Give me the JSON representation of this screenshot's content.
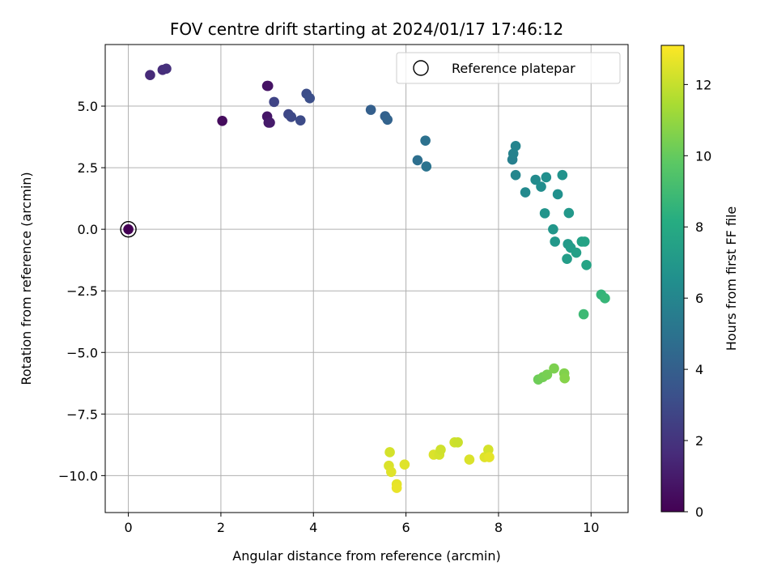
{
  "chart_data": {
    "type": "scatter",
    "title": "FOV centre drift starting at 2024/01/17 17:46:12",
    "xlabel": "Angular distance from reference (arcmin)",
    "ylabel": "Rotation from reference (arcmin)",
    "xlim": [
      -0.5,
      10.8
    ],
    "ylim": [
      -11.5,
      7.5
    ],
    "xticks": [
      0,
      2,
      4,
      6,
      8,
      10
    ],
    "xtick_labels": [
      "0",
      "2",
      "4",
      "6",
      "8",
      "10"
    ],
    "yticks": [
      5.0,
      2.5,
      0.0,
      -2.5,
      -5.0,
      -7.5,
      -10.0
    ],
    "ytick_labels": [
      "5.0",
      "2.5",
      "0.0",
      "−2.5",
      "−5.0",
      "−7.5",
      "−10.0"
    ],
    "grid": true,
    "legend": {
      "placement": "top-right",
      "entries": [
        "Reference platepar"
      ]
    },
    "colormap": "viridis",
    "colorbar": {
      "label": "Hours from first FF file",
      "range": [
        0,
        13.1
      ],
      "ticks": [
        0,
        2,
        4,
        6,
        8,
        10,
        12
      ],
      "tick_labels": [
        "0",
        "2",
        "4",
        "6",
        "8",
        "10",
        "12"
      ]
    },
    "reference": {
      "x": 0,
      "y": 0,
      "hours": 0.0
    },
    "points": [
      {
        "x": 0.0,
        "y": 0.0,
        "hours": 0.0
      },
      {
        "x": 2.03,
        "y": 4.4,
        "hours": 0.4
      },
      {
        "x": 3.0,
        "y": 5.82,
        "hours": 0.6
      },
      {
        "x": 3.02,
        "y": 5.82,
        "hours": 0.7
      },
      {
        "x": 3.0,
        "y": 4.58,
        "hours": 0.8
      },
      {
        "x": 3.03,
        "y": 4.33,
        "hours": 0.9
      },
      {
        "x": 3.06,
        "y": 4.33,
        "hours": 1.0
      },
      {
        "x": 0.47,
        "y": 6.26,
        "hours": 1.6
      },
      {
        "x": 0.74,
        "y": 6.47,
        "hours": 1.7
      },
      {
        "x": 0.82,
        "y": 6.52,
        "hours": 1.8
      },
      {
        "x": 3.15,
        "y": 5.17,
        "hours": 2.7
      },
      {
        "x": 3.46,
        "y": 4.67,
        "hours": 2.8
      },
      {
        "x": 3.52,
        "y": 4.56,
        "hours": 2.9
      },
      {
        "x": 3.72,
        "y": 4.42,
        "hours": 3.0
      },
      {
        "x": 3.85,
        "y": 5.5,
        "hours": 3.1
      },
      {
        "x": 3.92,
        "y": 5.32,
        "hours": 3.2
      },
      {
        "x": 5.24,
        "y": 4.85,
        "hours": 4.0
      },
      {
        "x": 5.55,
        "y": 4.59,
        "hours": 4.1
      },
      {
        "x": 5.6,
        "y": 4.45,
        "hours": 4.2
      },
      {
        "x": 6.25,
        "y": 2.8,
        "hours": 4.8
      },
      {
        "x": 6.42,
        "y": 3.6,
        "hours": 4.9
      },
      {
        "x": 6.44,
        "y": 2.55,
        "hours": 5.0
      },
      {
        "x": 8.3,
        "y": 2.83,
        "hours": 5.7
      },
      {
        "x": 8.32,
        "y": 3.07,
        "hours": 5.8
      },
      {
        "x": 8.37,
        "y": 3.38,
        "hours": 5.9
      },
      {
        "x": 8.37,
        "y": 2.2,
        "hours": 6.0
      },
      {
        "x": 8.58,
        "y": 1.5,
        "hours": 6.2
      },
      {
        "x": 8.8,
        "y": 2.01,
        "hours": 6.3
      },
      {
        "x": 8.92,
        "y": 1.73,
        "hours": 6.4
      },
      {
        "x": 9.03,
        "y": 2.11,
        "hours": 6.5
      },
      {
        "x": 9.28,
        "y": 1.42,
        "hours": 6.6
      },
      {
        "x": 9.38,
        "y": 2.2,
        "hours": 6.7
      },
      {
        "x": 9.0,
        "y": 0.65,
        "hours": 6.8
      },
      {
        "x": 9.18,
        "y": 0.0,
        "hours": 6.9
      },
      {
        "x": 9.22,
        "y": -0.5,
        "hours": 7.0
      },
      {
        "x": 9.52,
        "y": 0.66,
        "hours": 7.0
      },
      {
        "x": 9.5,
        "y": -0.6,
        "hours": 7.1
      },
      {
        "x": 9.56,
        "y": -0.75,
        "hours": 7.2
      },
      {
        "x": 9.48,
        "y": -1.2,
        "hours": 7.3
      },
      {
        "x": 9.68,
        "y": -0.95,
        "hours": 7.4
      },
      {
        "x": 9.8,
        "y": -0.5,
        "hours": 7.5
      },
      {
        "x": 9.86,
        "y": -0.5,
        "hours": 7.6
      },
      {
        "x": 9.9,
        "y": -1.45,
        "hours": 7.7
      },
      {
        "x": 10.22,
        "y": -2.65,
        "hours": 8.6
      },
      {
        "x": 10.3,
        "y": -2.8,
        "hours": 8.7
      },
      {
        "x": 9.84,
        "y": -3.45,
        "hours": 8.9
      },
      {
        "x": 8.86,
        "y": -6.1,
        "hours": 10.2
      },
      {
        "x": 8.96,
        "y": -6.0,
        "hours": 10.3
      },
      {
        "x": 9.05,
        "y": -5.9,
        "hours": 10.4
      },
      {
        "x": 9.2,
        "y": -5.65,
        "hours": 10.5
      },
      {
        "x": 9.42,
        "y": -5.85,
        "hours": 10.6
      },
      {
        "x": 9.43,
        "y": -6.05,
        "hours": 10.7
      },
      {
        "x": 5.65,
        "y": -9.05,
        "hours": 12.3
      },
      {
        "x": 5.63,
        "y": -9.6,
        "hours": 12.4
      },
      {
        "x": 5.68,
        "y": -9.85,
        "hours": 12.5
      },
      {
        "x": 5.8,
        "y": -10.35,
        "hours": 12.6
      },
      {
        "x": 5.8,
        "y": -10.5,
        "hours": 12.7
      },
      {
        "x": 5.97,
        "y": -9.55,
        "hours": 12.5
      },
      {
        "x": 6.6,
        "y": -9.15,
        "hours": 12.4
      },
      {
        "x": 6.72,
        "y": -9.15,
        "hours": 12.3
      },
      {
        "x": 6.75,
        "y": -8.95,
        "hours": 12.2
      },
      {
        "x": 7.05,
        "y": -8.65,
        "hours": 12.2
      },
      {
        "x": 7.12,
        "y": -8.65,
        "hours": 12.1
      },
      {
        "x": 7.37,
        "y": -9.35,
        "hours": 12.4
      },
      {
        "x": 7.7,
        "y": -9.25,
        "hours": 12.5
      },
      {
        "x": 7.78,
        "y": -8.95,
        "hours": 12.3
      },
      {
        "x": 7.8,
        "y": -9.25,
        "hours": 12.6
      }
    ]
  }
}
